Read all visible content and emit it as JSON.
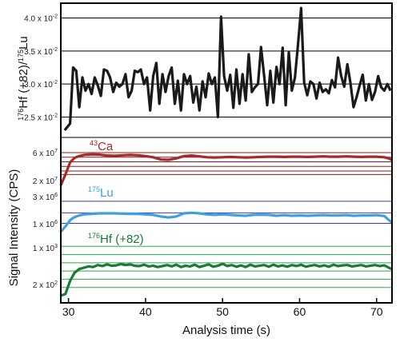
{
  "chart_data": {
    "type": "line",
    "xlabel": "Analysis time (s)",
    "xlim": [
      29,
      72
    ],
    "xticks": [
      "30",
      "40",
      "50",
      "60",
      "70"
    ],
    "upper_panel": {
      "ylabel_parts": [
        "176",
        "Hf (+82)/",
        "175",
        "Lu"
      ],
      "ylim": [
        0.023,
        0.042
      ],
      "ticks": [
        {
          "value": 0.025,
          "base": "2.5 x 10",
          "exp": "-2"
        },
        {
          "value": 0.03,
          "base": "3.0 x 10",
          "exp": "-2"
        },
        {
          "value": 0.035,
          "base": "3.5 x 10",
          "exp": "-2"
        },
        {
          "value": 0.04,
          "base": "4.0 x 10",
          "exp": "-2"
        }
      ],
      "series": [
        {
          "color": "#1a1a1a",
          "x": [
            29.5,
            30.2,
            30.6,
            31.0,
            31.4,
            31.8,
            32.2,
            32.6,
            33.0,
            33.4,
            33.8,
            34.2,
            34.6,
            35.0,
            35.4,
            35.8,
            36.2,
            36.6,
            37.0,
            37.4,
            37.8,
            38.2,
            38.6,
            39.0,
            39.4,
            39.8,
            40.2,
            40.6,
            41.0,
            41.4,
            41.8,
            42.2,
            42.6,
            43.0,
            43.4,
            43.8,
            44.2,
            44.6,
            45.0,
            45.4,
            45.8,
            46.2,
            46.6,
            47.0,
            47.4,
            47.8,
            48.2,
            48.6,
            49.0,
            49.4,
            49.8,
            50.2,
            50.6,
            51.0,
            51.4,
            51.8,
            52.2,
            52.6,
            53.0,
            53.4,
            53.8,
            54.2,
            54.6,
            55.0,
            55.4,
            55.8,
            56.2,
            56.6,
            57.0,
            57.4,
            57.8,
            58.2,
            58.6,
            59.0,
            59.4,
            59.8,
            60.2,
            60.6,
            61.0,
            61.4,
            61.8,
            62.2,
            62.6,
            63.0,
            63.4,
            63.8,
            64.2,
            64.6,
            65.0,
            65.4,
            65.8,
            66.2,
            66.6,
            67.0,
            67.4,
            67.8,
            68.2,
            68.6,
            69.0,
            69.4,
            69.8,
            70.2,
            70.6,
            71.0,
            71.4,
            71.8
          ],
          "y": [
            0.023,
            0.024,
            0.0325,
            0.032,
            0.0265,
            0.031,
            0.029,
            0.03,
            0.0285,
            0.031,
            0.0298,
            0.0282,
            0.0322,
            0.032,
            0.031,
            0.0288,
            0.0302,
            0.0296,
            0.03,
            0.0315,
            0.028,
            0.029,
            0.032,
            0.0318,
            0.0322,
            0.03,
            0.031,
            0.026,
            0.0312,
            0.0332,
            0.027,
            0.0315,
            0.0288,
            0.0312,
            0.0325,
            0.027,
            0.0305,
            0.026,
            0.0315,
            0.03,
            0.0312,
            0.0272,
            0.0296,
            0.026,
            0.0304,
            0.028,
            0.0316,
            0.03,
            0.031,
            0.025,
            0.0402,
            0.0312,
            0.029,
            0.0314,
            0.0264,
            0.0322,
            0.027,
            0.0315,
            0.0275,
            0.0345,
            0.0288,
            0.0295,
            0.03,
            0.0356,
            0.0312,
            0.0268,
            0.032,
            0.0272,
            0.0326,
            0.03,
            0.0355,
            0.0268,
            0.0348,
            0.029,
            0.031,
            0.036,
            0.0415,
            0.0302,
            0.0283,
            0.0304,
            0.03,
            0.0278,
            0.0302,
            0.0288,
            0.0292,
            0.0286,
            0.0306,
            0.0295,
            0.034,
            0.0312,
            0.0296,
            0.033,
            0.0302,
            0.0265,
            0.028,
            0.0298,
            0.0314,
            0.0275,
            0.03,
            0.0276,
            0.0288,
            0.0312,
            0.0295,
            0.029,
            0.03,
            0.029
          ]
        }
      ]
    },
    "lower_panel": {
      "ylabel": "Signal Intensity (CPS)",
      "ticks": [
        {
          "base": "6 x 10",
          "exp": "7"
        },
        {
          "base": "2 x 10",
          "exp": "7"
        },
        {
          "base": "3 x 10",
          "exp": "6"
        },
        {
          "base": "1 x 10",
          "exp": "6"
        },
        {
          "base": "1 x 10",
          "exp": "3"
        },
        {
          "base": "2 x 10",
          "exp": "2"
        }
      ],
      "series": [
        {
          "name_sup": "43",
          "name_main": "Ca",
          "color": "#a52a2a",
          "gridColor": "#8b1a1a",
          "gridlines": [
            58000000.0,
            50000000.0,
            42000000.0,
            34000000.0,
            26000000.0,
            20000000.0
          ],
          "ylim": [
            1000000.0,
            65000000.0
          ],
          "x": [
            29.0,
            29.6,
            30.2,
            30.8,
            31.4,
            32.0,
            33.0,
            34.0,
            35.0,
            36.0,
            37.0,
            38.0,
            39.0,
            40.0,
            41.0,
            42.0,
            43.0,
            44.0,
            45.0,
            46.0,
            47.0,
            48.0,
            49.0,
            50.0,
            51.0,
            52.0,
            53.0,
            54.0,
            55.0,
            56.0,
            57.0,
            58.0,
            59.0,
            60.0,
            61.0,
            62.0,
            63.0,
            64.0,
            65.0,
            66.0,
            67.0,
            68.0,
            69.0,
            70.0,
            71.0,
            71.6,
            72.0
          ],
          "y": [
            1000000.0,
            20000000.0,
            41000000.0,
            49000000.0,
            52000000.0,
            54000000.0,
            55000000.0,
            54500000.0,
            53000000.0,
            52500000.0,
            53500000.0,
            54000000.0,
            53500000.0,
            52000000.0,
            50000000.0,
            46000000.0,
            45500000.0,
            48000000.0,
            52000000.0,
            53000000.0,
            51500000.0,
            50000000.0,
            49500000.0,
            50000000.0,
            50500000.0,
            50000000.0,
            49500000.0,
            50000000.0,
            50500000.0,
            51000000.0,
            51000000.0,
            50500000.0,
            51000000.0,
            51000000.0,
            50500000.0,
            51000000.0,
            51500000.0,
            51000000.0,
            51000000.0,
            51500000.0,
            51000000.0,
            50500000.0,
            51000000.0,
            51000000.0,
            50000000.0,
            48000000.0,
            45000000.0
          ]
        },
        {
          "name_sup": "175",
          "name_main": "Lu",
          "color": "#3ea0de",
          "gridColor": "#3b3bb0",
          "gridlines": [
            3000000.0,
            1900000.0,
            900000.0
          ],
          "ylim": [
            100000.0,
            3900000.0
          ],
          "x": [
            29.0,
            29.6,
            30.2,
            30.8,
            31.4,
            32.0,
            33.0,
            34.0,
            35.0,
            36.0,
            37.0,
            38.0,
            39.0,
            40.0,
            41.0,
            42.0,
            43.0,
            44.0,
            45.0,
            46.0,
            47.0,
            48.0,
            49.0,
            50.0,
            51.0,
            52.0,
            53.0,
            54.0,
            55.0,
            56.0,
            57.0,
            58.0,
            59.0,
            60.0,
            61.0,
            62.0,
            63.0,
            64.0,
            65.0,
            66.0,
            67.0,
            68.0,
            69.0,
            70.0,
            71.0,
            71.6,
            72.0
          ],
          "y": [
            100000.0,
            600000.0,
            1200000.0,
            1500000.0,
            1650000.0,
            1750000.0,
            1800000.0,
            1850000.0,
            1850000.0,
            1850000.0,
            1820000.0,
            1800000.0,
            1800000.0,
            1750000.0,
            1700000.0,
            1550000.0,
            1450000.0,
            1550000.0,
            1850000.0,
            1900000.0,
            1850000.0,
            1750000.0,
            1700000.0,
            1750000.0,
            1700000.0,
            1650000.0,
            1620000.0,
            1700000.0,
            1720000.0,
            1700000.0,
            1620000.0,
            1680000.0,
            1620000.0,
            1650000.0,
            1620000.0,
            1650000.0,
            1680000.0,
            1650000.0,
            1650000.0,
            1680000.0,
            1620000.0,
            1650000.0,
            1650000.0,
            1680000.0,
            1600000.0,
            1200000.0,
            1000000.0
          ]
        },
        {
          "name_sup": "176",
          "name_main": "Hf (+82)",
          "color": "#1a7a36",
          "gridColor": "#2aa84a",
          "gridlines": [
            1250.0,
            1000.0,
            750.0,
            500.0,
            250.0,
            0.0
          ],
          "ylim": [
            -250.0,
            1500.0
          ],
          "x": [
            29.0,
            29.6,
            30.2,
            30.8,
            31.4,
            32.0,
            32.6,
            33.2,
            33.8,
            34.4,
            35.0,
            35.6,
            36.2,
            36.8,
            37.4,
            38.0,
            38.6,
            39.2,
            39.8,
            40.4,
            41.0,
            41.6,
            42.2,
            42.8,
            43.4,
            44.0,
            44.6,
            45.2,
            45.8,
            46.4,
            47.0,
            47.6,
            48.2,
            48.8,
            49.4,
            50.0,
            50.6,
            51.2,
            51.8,
            52.4,
            53.0,
            53.6,
            54.2,
            54.8,
            55.4,
            56.0,
            56.6,
            57.2,
            57.8,
            58.4,
            59.0,
            59.6,
            60.2,
            60.8,
            61.4,
            62.0,
            62.6,
            63.2,
            63.8,
            64.4,
            65.0,
            65.6,
            66.2,
            66.8,
            67.4,
            68.0,
            68.6,
            69.2,
            69.8,
            70.4,
            71.0,
            71.6,
            72.0
          ],
          "y": [
            -250.0,
            -200.0,
            200.0,
            450.0,
            560.0,
            600.0,
            640.0,
            620.0,
            680.0,
            650.0,
            700.0,
            660.0,
            670.0,
            710.0,
            680.0,
            700.0,
            660.0,
            650.0,
            690.0,
            640.0,
            660.0,
            620.0,
            650.0,
            680.0,
            640.0,
            690.0,
            620.0,
            660.0,
            640.0,
            690.0,
            620.0,
            660.0,
            700.0,
            630.0,
            660.0,
            720.0,
            650.0,
            680.0,
            630.0,
            670.0,
            620.0,
            690.0,
            640.0,
            660.0,
            680.0,
            630.0,
            690.0,
            640.0,
            670.0,
            630.0,
            680.0,
            650.0,
            690.0,
            630.0,
            660.0,
            680.0,
            640.0,
            670.0,
            630.0,
            690.0,
            650.0,
            670.0,
            680.0,
            640.0,
            660.0,
            680.0,
            640.0,
            660.0,
            680.0,
            650.0,
            670.0,
            600.0,
            560.0
          ]
        }
      ]
    }
  }
}
